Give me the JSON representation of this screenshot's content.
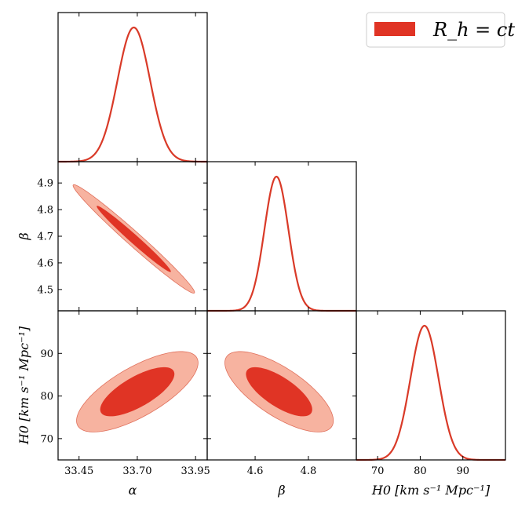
{
  "colors": {
    "curve": "#d93a28",
    "inner": "#e03425",
    "outer": "#f7b3a0",
    "outer_edge": "#e0705c",
    "axis": "#000000"
  },
  "legend": {
    "label": "R_h = ct",
    "placement": "top-right"
  },
  "chart_data": {
    "type": "corner",
    "parameters": [
      {
        "name": "alpha",
        "label": "α",
        "range": [
          33.36,
          34.0
        ],
        "ticks": [
          33.45,
          33.7,
          33.95
        ],
        "tick_labels": [
          "33.45",
          "33.70",
          "33.95"
        ]
      },
      {
        "name": "beta",
        "label": "β",
        "range": [
          4.42,
          4.98
        ],
        "ticks": [
          4.6,
          4.8
        ],
        "tick_labels": [
          "4.6",
          "4.8"
        ],
        "y_ticks": [
          4.5,
          4.6,
          4.7,
          4.8,
          4.9
        ],
        "y_tick_labels": [
          "4.5",
          "4.6",
          "4.7",
          "4.8",
          "4.9"
        ]
      },
      {
        "name": "H0",
        "label": "H0 [km s⁻¹ Mpc⁻¹]",
        "range": [
          65,
          100
        ],
        "ticks": [
          70,
          80,
          90
        ],
        "tick_labels": [
          "70",
          "80",
          "90"
        ]
      }
    ],
    "marginals": [
      {
        "param": "alpha",
        "mean": 33.685,
        "sigma": 0.07
      },
      {
        "param": "beta",
        "mean": 4.68,
        "sigma": 0.045
      },
      {
        "param": "H0",
        "mean": 81.0,
        "sigma": 3.3
      }
    ],
    "joint": [
      {
        "x": "alpha",
        "y": "beta",
        "center": [
          33.685,
          4.69
        ],
        "sigma_x": 0.105,
        "sigma_y": 0.082,
        "rho": -0.985,
        "levels": [
          1,
          2
        ]
      },
      {
        "x": "alpha",
        "y": "H0",
        "center": [
          33.7,
          81.0
        ],
        "sigma_x": 0.105,
        "sigma_y": 3.8,
        "rho": 0.72,
        "levels": [
          1,
          2
        ]
      },
      {
        "x": "beta",
        "y": "H0",
        "center": [
          4.69,
          81.0
        ],
        "sigma_x": 0.082,
        "sigma_y": 3.8,
        "rho": -0.72,
        "levels": [
          1,
          2
        ]
      }
    ]
  }
}
